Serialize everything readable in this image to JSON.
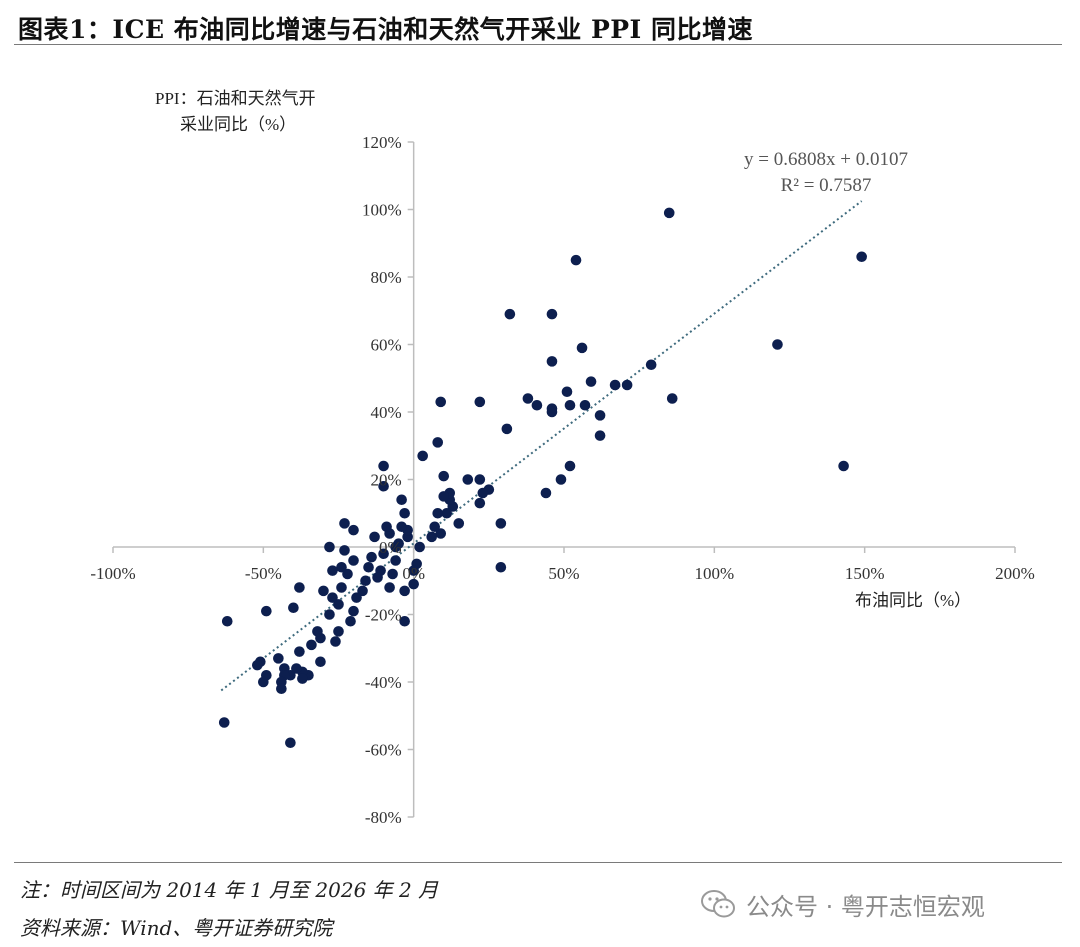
{
  "header": {
    "title": "图表1：ICE 布油同比增速与石油和天然气开采业 PPI 同比增速"
  },
  "footer": {
    "note": "注：时间区间为 2014 年 1 月至 2026 年 2 月",
    "source": "资料来源：Wind、粤开证券研究院",
    "watermark": "公众号 · 粤开志恒宏观"
  },
  "chart_data": {
    "type": "scatter",
    "xlabel": "布油同比（%）",
    "ylabel_line1": "PPI：石油和天然气开",
    "ylabel_line2": "采业同比（%）",
    "xlim": [
      -1.0,
      2.0
    ],
    "ylim": [
      -0.8,
      1.2
    ],
    "xticks": [
      -1.0,
      -0.5,
      0,
      0.5,
      1.0,
      1.5,
      2.0
    ],
    "xtick_labels": [
      "-100%",
      "-50%",
      "0%",
      "50%",
      "100%",
      "150%",
      "200%"
    ],
    "yticks": [
      -0.8,
      -0.6,
      -0.4,
      -0.2,
      0,
      0.2,
      0.4,
      0.6,
      0.8,
      1.0,
      1.2
    ],
    "ytick_labels": [
      "-80%",
      "-60%",
      "-40%",
      "-20%",
      "0%",
      "20%",
      "40%",
      "60%",
      "80%",
      "100%",
      "120%"
    ],
    "trendline": {
      "slope": 0.6808,
      "intercept": 0.0107,
      "x_range": [
        -0.64,
        1.49
      ],
      "equation": "y = 0.6808x + 0.0107",
      "r2": "R² = 0.7587",
      "style": "dotted"
    },
    "marker_color": "#0d1f4f",
    "trend_color": "#3f6b7e",
    "axis_color": "#bdbdbd",
    "points": [
      [
        0.85,
        0.99
      ],
      [
        1.49,
        0.86
      ],
      [
        0.54,
        0.85
      ],
      [
        1.21,
        0.6
      ],
      [
        1.43,
        0.24
      ],
      [
        0.86,
        0.44
      ],
      [
        0.79,
        0.54
      ],
      [
        0.71,
        0.48
      ],
      [
        0.67,
        0.48
      ],
      [
        0.59,
        0.49
      ],
      [
        0.56,
        0.59
      ],
      [
        0.57,
        0.42
      ],
      [
        0.62,
        0.39
      ],
      [
        0.62,
        0.33
      ],
      [
        0.52,
        0.42
      ],
      [
        0.51,
        0.46
      ],
      [
        0.52,
        0.24
      ],
      [
        0.49,
        0.2
      ],
      [
        0.44,
        0.16
      ],
      [
        0.46,
        0.55
      ],
      [
        0.46,
        0.69
      ],
      [
        0.46,
        0.41
      ],
      [
        0.46,
        0.4
      ],
      [
        0.41,
        0.42
      ],
      [
        0.38,
        0.44
      ],
      [
        0.32,
        0.69
      ],
      [
        0.31,
        0.35
      ],
      [
        0.29,
        0.07
      ],
      [
        0.29,
        -0.06
      ],
      [
        0.22,
        0.43
      ],
      [
        0.09,
        0.43
      ],
      [
        0.08,
        0.31
      ],
      [
        0.25,
        0.17
      ],
      [
        0.23,
        0.16
      ],
      [
        0.22,
        0.2
      ],
      [
        0.22,
        0.13
      ],
      [
        0.18,
        0.2
      ],
      [
        0.15,
        0.07
      ],
      [
        0.13,
        0.12
      ],
      [
        0.12,
        0.14
      ],
      [
        0.12,
        0.16
      ],
      [
        0.1,
        0.21
      ],
      [
        0.1,
        0.15
      ],
      [
        0.11,
        0.1
      ],
      [
        0.09,
        0.04
      ],
      [
        0.08,
        0.1
      ],
      [
        0.07,
        0.06
      ],
      [
        0.06,
        0.03
      ],
      [
        0.03,
        0.27
      ],
      [
        0.02,
        0.0
      ],
      [
        0.01,
        -0.05
      ],
      [
        0.0,
        -0.07
      ],
      [
        0.0,
        -0.11
      ],
      [
        -0.03,
        -0.13
      ],
      [
        -0.03,
        -0.22
      ],
      [
        -0.02,
        0.03
      ],
      [
        -0.02,
        0.05
      ],
      [
        -0.03,
        0.1
      ],
      [
        -0.04,
        0.06
      ],
      [
        -0.04,
        0.14
      ],
      [
        -0.05,
        0.01
      ],
      [
        -0.06,
        0.0
      ],
      [
        -0.06,
        -0.04
      ],
      [
        -0.07,
        -0.08
      ],
      [
        -0.08,
        -0.12
      ],
      [
        -0.08,
        0.04
      ],
      [
        -0.09,
        0.06
      ],
      [
        -0.1,
        0.18
      ],
      [
        -0.1,
        0.24
      ],
      [
        -0.1,
        -0.02
      ],
      [
        -0.11,
        -0.07
      ],
      [
        -0.12,
        -0.09
      ],
      [
        -0.13,
        0.03
      ],
      [
        -0.14,
        -0.03
      ],
      [
        -0.15,
        -0.06
      ],
      [
        -0.16,
        -0.1
      ],
      [
        -0.17,
        -0.13
      ],
      [
        -0.19,
        -0.15
      ],
      [
        -0.2,
        0.05
      ],
      [
        -0.2,
        -0.04
      ],
      [
        -0.2,
        -0.19
      ],
      [
        -0.21,
        -0.22
      ],
      [
        -0.22,
        -0.08
      ],
      [
        -0.23,
        0.07
      ],
      [
        -0.23,
        -0.01
      ],
      [
        -0.24,
        -0.06
      ],
      [
        -0.24,
        -0.12
      ],
      [
        -0.25,
        -0.17
      ],
      [
        -0.25,
        -0.25
      ],
      [
        -0.26,
        -0.28
      ],
      [
        -0.27,
        -0.07
      ],
      [
        -0.27,
        -0.15
      ],
      [
        -0.28,
        -0.2
      ],
      [
        -0.28,
        0.0
      ],
      [
        -0.3,
        -0.13
      ],
      [
        -0.31,
        -0.27
      ],
      [
        -0.31,
        -0.34
      ],
      [
        -0.32,
        -0.25
      ],
      [
        -0.34,
        -0.29
      ],
      [
        -0.35,
        -0.38
      ],
      [
        -0.37,
        -0.37
      ],
      [
        -0.37,
        -0.39
      ],
      [
        -0.38,
        -0.31
      ],
      [
        -0.38,
        -0.12
      ],
      [
        -0.39,
        -0.36
      ],
      [
        -0.4,
        -0.18
      ],
      [
        -0.41,
        -0.58
      ],
      [
        -0.41,
        -0.38
      ],
      [
        -0.43,
        -0.36
      ],
      [
        -0.43,
        -0.38
      ],
      [
        -0.44,
        -0.4
      ],
      [
        -0.44,
        -0.42
      ],
      [
        -0.45,
        -0.33
      ],
      [
        -0.49,
        -0.19
      ],
      [
        -0.49,
        -0.38
      ],
      [
        -0.5,
        -0.4
      ],
      [
        -0.51,
        -0.34
      ],
      [
        -0.52,
        -0.35
      ],
      [
        -0.62,
        -0.22
      ],
      [
        -0.63,
        -0.52
      ]
    ]
  }
}
